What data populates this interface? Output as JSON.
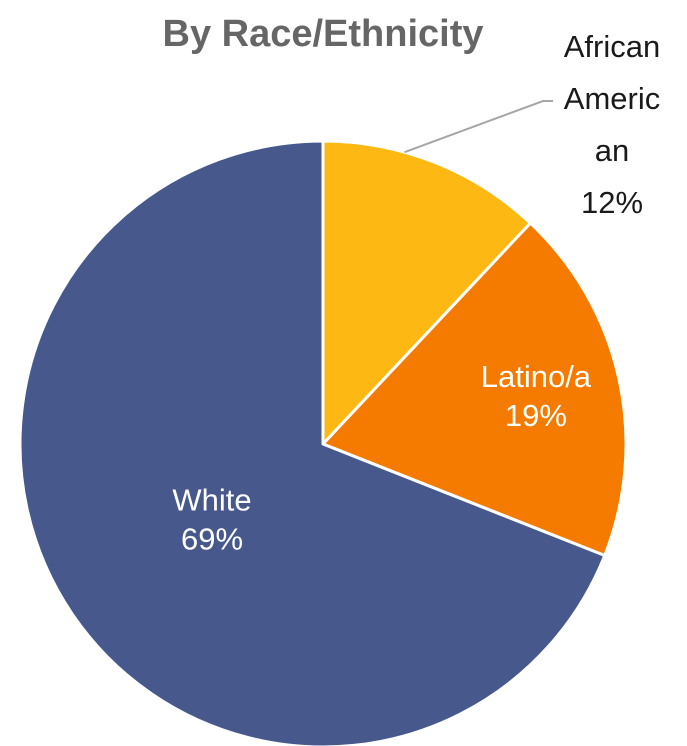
{
  "chart_data": {
    "type": "pie",
    "title": "By Race/Ethnicity",
    "slices": [
      {
        "label_lines": [
          "African",
          "Americ",
          "an"
        ],
        "value": 12,
        "value_label": "12%",
        "color": "#FDB813",
        "label_position": "outside-top-right"
      },
      {
        "label_lines": [
          "Latino/a"
        ],
        "value": 19,
        "value_label": "19%",
        "color": "#F57B00",
        "label_position": "inside"
      },
      {
        "label_lines": [
          "White"
        ],
        "value": 69,
        "value_label": "69%",
        "color": "#47598C",
        "label_position": "inside"
      }
    ],
    "slice_border_color": "#ffffff",
    "legend": "none"
  }
}
